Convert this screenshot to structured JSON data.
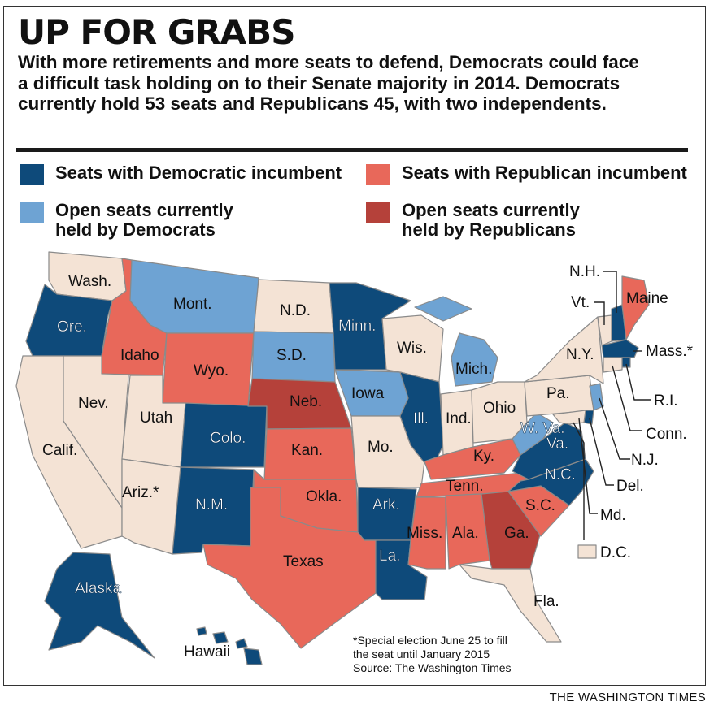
{
  "headline": "UP FOR GRABS",
  "dek": "With more retirements and more seats to defend, Democrats could face a difficult task holding on to their Senate majority in 2014. Democrats currently hold 53 seats and Republicans 45, with two independents.",
  "colors": {
    "dem_incumbent": "#0e4a7a",
    "dem_open": "#6ea3d3",
    "rep_incumbent": "#e8685a",
    "rep_open": "#b5413a",
    "no_race": "#f4e3d5",
    "ocean": "#ffffff"
  },
  "legend": [
    {
      "category": "dem_incumbent",
      "label": "Seats with Democratic incumbent"
    },
    {
      "category": "rep_incumbent",
      "label": "Seats with Republican incumbent"
    },
    {
      "category": "dem_open",
      "label": "Open seats currently held by Democrats"
    },
    {
      "category": "rep_open",
      "label": "Open seats currently held by Republicans"
    }
  ],
  "states": {
    "wash": {
      "label": "Wash.",
      "category": "no_race"
    },
    "ore": {
      "label": "Ore.",
      "category": "dem_incumbent"
    },
    "calif": {
      "label": "Calif.",
      "category": "no_race"
    },
    "nev": {
      "label": "Nev.",
      "category": "no_race"
    },
    "idaho": {
      "label": "Idaho",
      "category": "rep_incumbent"
    },
    "mont": {
      "label": "Mont.",
      "category": "dem_open"
    },
    "wyo": {
      "label": "Wyo.",
      "category": "rep_incumbent"
    },
    "utah": {
      "label": "Utah",
      "category": "no_race"
    },
    "ariz": {
      "label": "Ariz.*",
      "category": "no_race"
    },
    "colo": {
      "label": "Colo.",
      "category": "dem_incumbent"
    },
    "nm": {
      "label": "N.M.",
      "category": "dem_incumbent"
    },
    "nd": {
      "label": "N.D.",
      "category": "no_race"
    },
    "sd": {
      "label": "S.D.",
      "category": "dem_open"
    },
    "neb": {
      "label": "Neb.",
      "category": "rep_open"
    },
    "kan": {
      "label": "Kan.",
      "category": "rep_incumbent"
    },
    "okla": {
      "label": "Okla.",
      "category": "rep_incumbent"
    },
    "texas": {
      "label": "Texas",
      "category": "rep_incumbent"
    },
    "minn": {
      "label": "Minn.",
      "category": "dem_incumbent"
    },
    "iowa": {
      "label": "Iowa",
      "category": "dem_open"
    },
    "mo": {
      "label": "Mo.",
      "category": "no_race"
    },
    "ark": {
      "label": "Ark.",
      "category": "dem_incumbent"
    },
    "la": {
      "label": "La.",
      "category": "dem_incumbent"
    },
    "wis": {
      "label": "Wis.",
      "category": "no_race"
    },
    "ill": {
      "label": "Ill.",
      "category": "dem_incumbent"
    },
    "mich": {
      "label": "Mich.",
      "category": "dem_open"
    },
    "ind": {
      "label": "Ind.",
      "category": "no_race"
    },
    "ohio": {
      "label": "Ohio",
      "category": "no_race"
    },
    "ky": {
      "label": "Ky.",
      "category": "rep_incumbent"
    },
    "tenn": {
      "label": "Tenn.",
      "category": "rep_incumbent"
    },
    "miss": {
      "label": "Miss.",
      "category": "rep_incumbent"
    },
    "ala": {
      "label": "Ala.",
      "category": "rep_incumbent"
    },
    "ga": {
      "label": "Ga.",
      "category": "rep_open"
    },
    "fla": {
      "label": "Fla.",
      "category": "no_race"
    },
    "sc": {
      "label": "S.C.",
      "category": "rep_incumbent"
    },
    "nc": {
      "label": "N.C.",
      "category": "dem_incumbent"
    },
    "va": {
      "label": "Va.",
      "category": "dem_incumbent"
    },
    "wv": {
      "label": "W. Va.",
      "category": "dem_open"
    },
    "pa": {
      "label": "Pa.",
      "category": "no_race"
    },
    "ny": {
      "label": "N.Y.",
      "category": "no_race"
    },
    "vt": {
      "label": "Vt.",
      "category": "no_race"
    },
    "nh": {
      "label": "N.H.",
      "category": "dem_incumbent"
    },
    "maine": {
      "label": "Maine",
      "category": "rep_incumbent"
    },
    "mass": {
      "label": "Mass.*",
      "category": "dem_incumbent"
    },
    "ri": {
      "label": "R.I.",
      "category": "dem_incumbent"
    },
    "conn": {
      "label": "Conn.",
      "category": "no_race"
    },
    "nj": {
      "label": "N.J.",
      "category": "dem_open"
    },
    "del": {
      "label": "Del.",
      "category": "dem_incumbent"
    },
    "md": {
      "label": "Md.",
      "category": "no_race"
    },
    "dc": {
      "label": "D.C.",
      "category": "no_race"
    },
    "alaska": {
      "label": "Alaska",
      "category": "dem_incumbent"
    },
    "hawaii": {
      "label": "Hawaii",
      "category": "dem_incumbent"
    }
  },
  "footnote": [
    "*Special election June 25 to fill",
    "the seat until January 2015",
    "Source: The Washington Times"
  ],
  "credit": "THE WASHINGTON TIMES"
}
